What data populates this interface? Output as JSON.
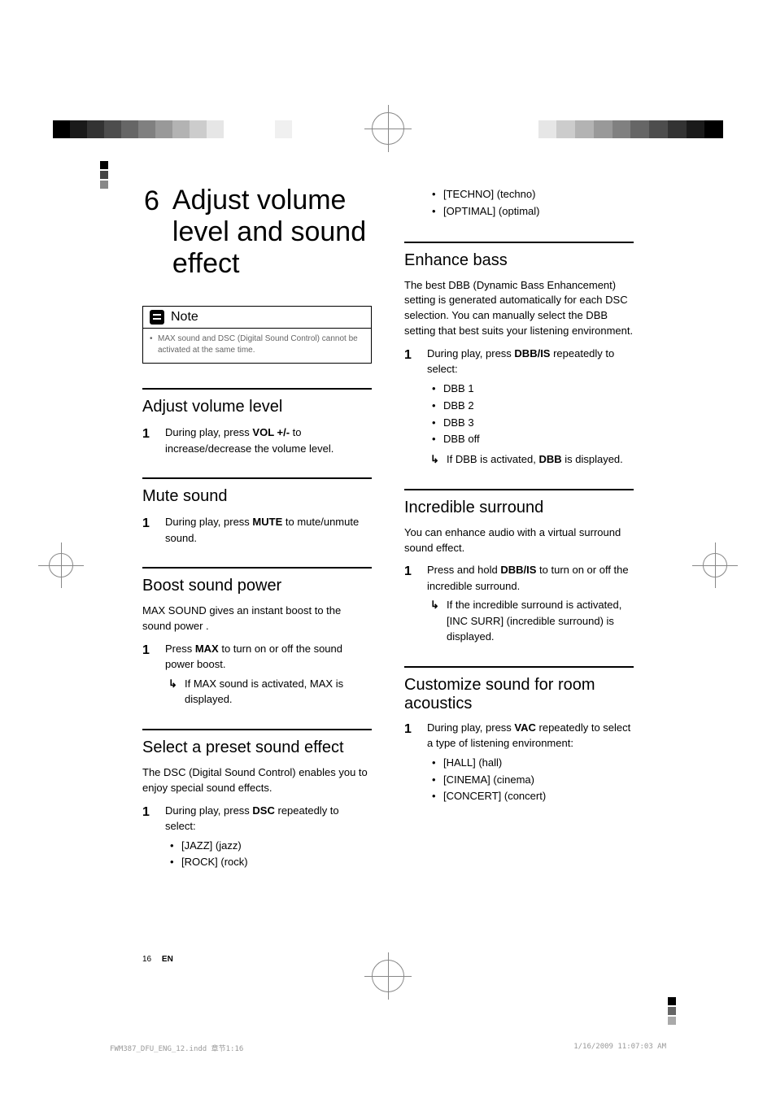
{
  "chapter": {
    "num": "6",
    "title": "Adjust volume level and sound effect"
  },
  "note": {
    "label": "Note",
    "body": "MAX sound and DSC (Digital Sound Control) cannot be activated at the same time."
  },
  "sections": {
    "adjust_volume": {
      "title": "Adjust volume level",
      "step_pre": "During play, press ",
      "step_bold": "VOL +/-",
      "step_post": " to increase/decrease the volume level."
    },
    "mute": {
      "title": "Mute sound",
      "step_pre": "During play, press ",
      "step_bold": "MUTE",
      "step_post": " to mute/unmute sound."
    },
    "boost": {
      "title": "Boost sound power",
      "intro": "MAX SOUND gives an instant boost to the sound power .",
      "step_pre": "Press ",
      "step_bold": "MAX",
      "step_post": " to turn on or off the sound power boost.",
      "arrow": "If MAX sound is activated, MAX is displayed."
    },
    "preset": {
      "title": "Select a preset sound effect",
      "intro": "The DSC (Digital Sound Control) enables you to enjoy special sound effects.",
      "step_pre": "During play, press ",
      "step_bold": "DSC",
      "step_post": " repeatedly to select:",
      "options": [
        "[JAZZ] (jazz)",
        "[ROCK] (rock)",
        "[TECHNO] (techno)",
        "[OPTIMAL] (optimal)"
      ]
    },
    "enhance_bass": {
      "title": "Enhance bass",
      "intro": "The best DBB (Dynamic Bass Enhancement) setting is generated automatically for each DSC selection. You can manually select the DBB setting that best suits your listening environment.",
      "step_pre": "During play, press ",
      "step_bold": "DBB/IS",
      "step_post": " repeatedly to select:",
      "options": [
        "DBB 1",
        "DBB 2",
        "DBB 3",
        "DBB off"
      ],
      "arrow_pre": "If DBB is activated, ",
      "arrow_bold": "DBB",
      "arrow_post": " is displayed."
    },
    "incredible": {
      "title": "Incredible surround",
      "intro": "You can enhance audio with a virtual surround sound effect.",
      "step_pre": "Press and hold ",
      "step_bold": "DBB/IS",
      "step_post": " to turn on or off the incredible surround.",
      "arrow": "If the incredible surround is activated, [INC SURR] (incredible surround) is displayed."
    },
    "customize": {
      "title": "Customize sound for room acoustics",
      "step_pre": "During play, press ",
      "step_bold": "VAC",
      "step_post": " repeatedly to select a type of listening environment:",
      "options": [
        "[HALL] (hall)",
        "[CINEMA] (cinema)",
        "[CONCERT] (concert)"
      ]
    }
  },
  "footer": {
    "page_num": "16",
    "lang": "EN"
  },
  "print": {
    "file": "FWM387_DFU_ENG_12.indd   章节1:16",
    "date": "1/16/2009   11:07:03 AM"
  },
  "crop_gradient_left": [
    "#000000",
    "#1a1a1a",
    "#333333",
    "#4d4d4d",
    "#666666",
    "#808080",
    "#999999",
    "#b3b3b3",
    "#cccccc",
    "#e6e6e6",
    "#ffffff",
    "#ffffff",
    "#ffffff",
    "#f0f0f0",
    "#ffffff"
  ],
  "crop_gradient_right": [
    "#ffffff",
    "#e6e6e6",
    "#cccccc",
    "#b3b3b3",
    "#999999",
    "#808080",
    "#666666",
    "#4d4d4d",
    "#333333",
    "#1a1a1a",
    "#000000"
  ]
}
